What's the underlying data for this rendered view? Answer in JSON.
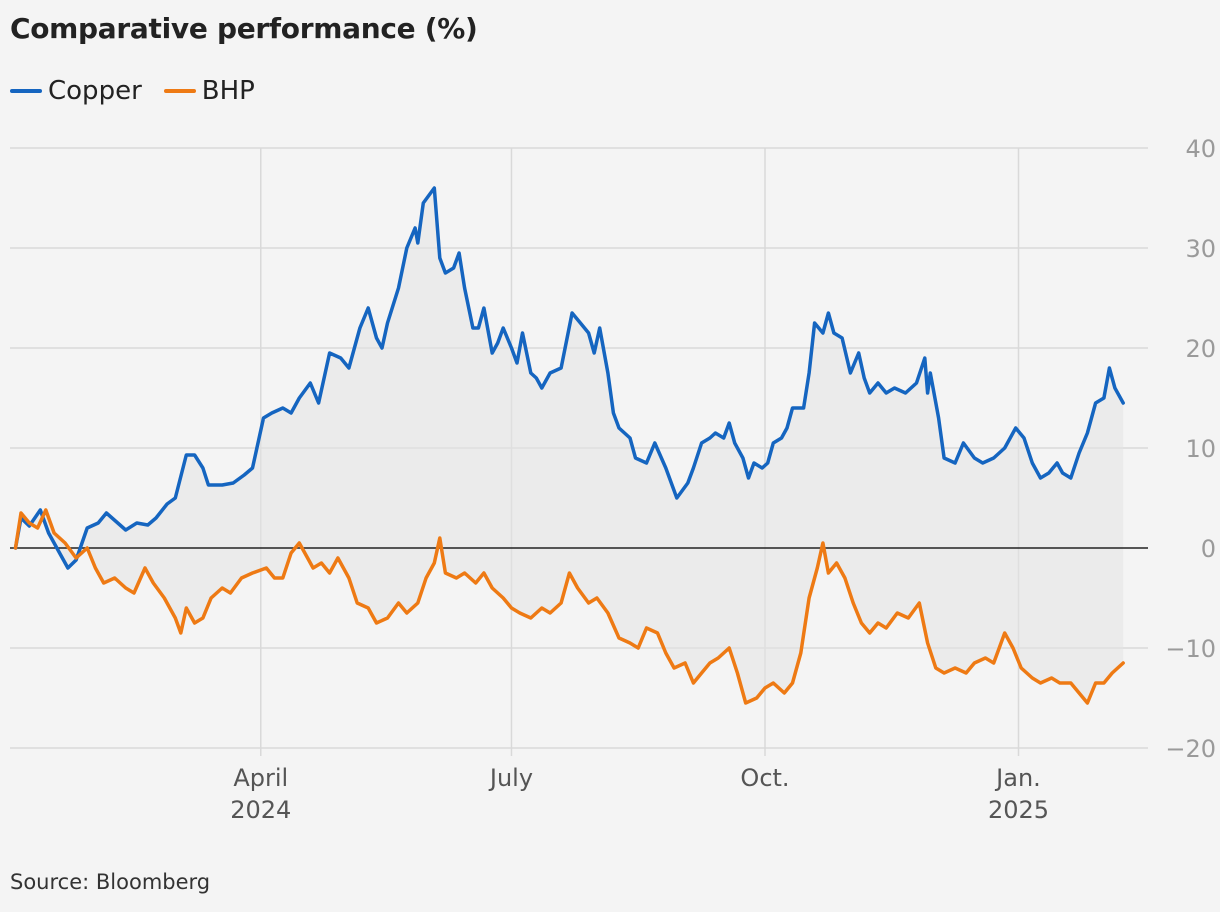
{
  "chart_data": {
    "type": "line",
    "title": "Comparative performance (%)",
    "xlabel": "",
    "ylabel": "",
    "ylim": [
      -20,
      40
    ],
    "xlim": [
      "2024-01-01",
      "2025-01-20"
    ],
    "y_ticks": [
      40,
      30,
      20,
      10,
      0,
      -10,
      -20
    ],
    "y_tick_labels": [
      "40",
      "30",
      "20",
      "10",
      "0",
      "−10",
      "−20"
    ],
    "x_ticks": [
      {
        "date": "2024-04-01",
        "label": "April",
        "sublabel": "2024"
      },
      {
        "date": "2024-07-01",
        "label": "July",
        "sublabel": ""
      },
      {
        "date": "2024-10-01",
        "label": "Oct.",
        "sublabel": ""
      },
      {
        "date": "2025-01-01",
        "label": "Jan.",
        "sublabel": "2025"
      }
    ],
    "grid": true,
    "legend_position": "top-left",
    "series": [
      {
        "name": "Copper",
        "color": "#1565c0",
        "points": [
          [
            "2024-01-03",
            0
          ],
          [
            "2024-01-05",
            3
          ],
          [
            "2024-01-08",
            2.2
          ],
          [
            "2024-01-12",
            3.8
          ],
          [
            "2024-01-15",
            1.5
          ],
          [
            "2024-01-19",
            -0.5
          ],
          [
            "2024-01-22",
            -2
          ],
          [
            "2024-01-25",
            -1.2
          ],
          [
            "2024-01-29",
            2
          ],
          [
            "2024-02-02",
            2.5
          ],
          [
            "2024-02-05",
            3.5
          ],
          [
            "2024-02-12",
            1.8
          ],
          [
            "2024-02-16",
            2.5
          ],
          [
            "2024-02-20",
            2.3
          ],
          [
            "2024-02-23",
            3
          ],
          [
            "2024-02-27",
            4.4
          ],
          [
            "2024-03-01",
            5
          ],
          [
            "2024-03-05",
            9.3
          ],
          [
            "2024-03-08",
            9.3
          ],
          [
            "2024-03-11",
            8
          ],
          [
            "2024-03-13",
            6.3
          ],
          [
            "2024-03-18",
            6.3
          ],
          [
            "2024-03-22",
            6.5
          ],
          [
            "2024-03-26",
            7.3
          ],
          [
            "2024-03-29",
            8
          ],
          [
            "2024-04-02",
            13
          ],
          [
            "2024-04-05",
            13.5
          ],
          [
            "2024-04-09",
            14
          ],
          [
            "2024-04-12",
            13.5
          ],
          [
            "2024-04-15",
            15
          ],
          [
            "2024-04-19",
            16.5
          ],
          [
            "2024-04-22",
            14.5
          ],
          [
            "2024-04-26",
            19.5
          ],
          [
            "2024-04-30",
            19
          ],
          [
            "2024-05-03",
            18
          ],
          [
            "2024-05-07",
            22
          ],
          [
            "2024-05-10",
            24
          ],
          [
            "2024-05-13",
            21
          ],
          [
            "2024-05-15",
            20
          ],
          [
            "2024-05-17",
            22.5
          ],
          [
            "2024-05-21",
            26
          ],
          [
            "2024-05-24",
            30
          ],
          [
            "2024-05-27",
            32
          ],
          [
            "2024-05-28",
            30.5
          ],
          [
            "2024-05-30",
            34.5
          ],
          [
            "2024-06-03",
            36
          ],
          [
            "2024-06-05",
            29
          ],
          [
            "2024-06-07",
            27.5
          ],
          [
            "2024-06-10",
            28
          ],
          [
            "2024-06-12",
            29.5
          ],
          [
            "2024-06-14",
            26
          ],
          [
            "2024-06-17",
            22
          ],
          [
            "2024-06-19",
            22
          ],
          [
            "2024-06-21",
            24
          ],
          [
            "2024-06-24",
            19.5
          ],
          [
            "2024-06-26",
            20.5
          ],
          [
            "2024-06-28",
            22
          ],
          [
            "2024-07-01",
            20
          ],
          [
            "2024-07-03",
            18.5
          ],
          [
            "2024-07-05",
            21.5
          ],
          [
            "2024-07-08",
            17.5
          ],
          [
            "2024-07-10",
            17
          ],
          [
            "2024-07-12",
            16
          ],
          [
            "2024-07-15",
            17.5
          ],
          [
            "2024-07-19",
            18
          ],
          [
            "2024-07-23",
            23.5
          ],
          [
            "2024-07-26",
            22.5
          ],
          [
            "2024-07-29",
            21.5
          ],
          [
            "2024-07-31",
            19.5
          ],
          [
            "2024-08-02",
            22
          ],
          [
            "2024-08-05",
            17.5
          ],
          [
            "2024-08-07",
            13.5
          ],
          [
            "2024-08-09",
            12
          ],
          [
            "2024-08-13",
            11
          ],
          [
            "2024-08-15",
            9
          ],
          [
            "2024-08-19",
            8.5
          ],
          [
            "2024-08-22",
            10.5
          ],
          [
            "2024-08-26",
            8
          ],
          [
            "2024-08-28",
            6.5
          ],
          [
            "2024-08-30",
            5
          ],
          [
            "2024-09-03",
            6.5
          ],
          [
            "2024-09-05",
            8
          ],
          [
            "2024-09-08",
            10.5
          ],
          [
            "2024-09-11",
            11
          ],
          [
            "2024-09-13",
            11.5
          ],
          [
            "2024-09-16",
            11
          ],
          [
            "2024-09-18",
            12.5
          ],
          [
            "2024-09-20",
            10.5
          ],
          [
            "2024-09-23",
            9
          ],
          [
            "2024-09-25",
            7
          ],
          [
            "2024-09-27",
            8.5
          ],
          [
            "2024-09-30",
            8
          ],
          [
            "2024-10-02",
            8.5
          ],
          [
            "2024-10-04",
            10.5
          ],
          [
            "2024-10-07",
            11
          ],
          [
            "2024-10-09",
            12
          ],
          [
            "2024-10-11",
            14
          ],
          [
            "2024-10-15",
            14
          ],
          [
            "2024-10-17",
            17.5
          ],
          [
            "2024-10-19",
            22.5
          ],
          [
            "2024-10-22",
            21.5
          ],
          [
            "2024-10-24",
            23.5
          ],
          [
            "2024-10-26",
            21.5
          ],
          [
            "2024-10-29",
            21
          ],
          [
            "2024-11-01",
            17.5
          ],
          [
            "2024-11-04",
            19.5
          ],
          [
            "2024-11-06",
            17
          ],
          [
            "2024-11-08",
            15.5
          ],
          [
            "2024-11-11",
            16.5
          ],
          [
            "2024-11-14",
            15.5
          ],
          [
            "2024-11-17",
            16
          ],
          [
            "2024-11-21",
            15.5
          ],
          [
            "2024-11-25",
            16.5
          ],
          [
            "2024-11-28",
            19
          ],
          [
            "2024-11-29",
            15.5
          ],
          [
            "2024-11-30",
            17.5
          ],
          [
            "2024-12-03",
            13
          ],
          [
            "2024-12-05",
            9
          ],
          [
            "2024-12-09",
            8.5
          ],
          [
            "2024-12-12",
            10.5
          ],
          [
            "2024-12-16",
            9
          ],
          [
            "2024-12-19",
            8.5
          ],
          [
            "2024-12-23",
            9
          ],
          [
            "2024-12-27",
            10
          ],
          [
            "2024-12-31",
            12
          ],
          [
            "2025-01-03",
            11
          ],
          [
            "2025-01-06",
            8.5
          ],
          [
            "2025-01-09",
            7
          ],
          [
            "2025-01-12",
            7.5
          ],
          [
            "2025-01-15",
            8.5
          ],
          [
            "2025-01-17",
            7.5
          ],
          [
            "2025-01-20",
            7
          ],
          [
            "2025-01-23",
            9.5
          ],
          [
            "2025-01-26",
            11.5
          ],
          [
            "2025-01-29",
            14.5
          ],
          [
            "2025-02-01",
            15
          ],
          [
            "2025-02-03",
            18
          ],
          [
            "2025-02-05",
            16
          ],
          [
            "2025-02-08",
            14.5
          ]
        ]
      },
      {
        "name": "BHP",
        "color": "#ee7a14",
        "points": [
          [
            "2024-01-03",
            0
          ],
          [
            "2024-01-05",
            3.5
          ],
          [
            "2024-01-08",
            2.5
          ],
          [
            "2024-01-11",
            2
          ],
          [
            "2024-01-14",
            3.8
          ],
          [
            "2024-01-17",
            1.5
          ],
          [
            "2024-01-21",
            0.5
          ],
          [
            "2024-01-25",
            -1
          ],
          [
            "2024-01-29",
            0
          ],
          [
            "2024-02-01",
            -2
          ],
          [
            "2024-02-04",
            -3.5
          ],
          [
            "2024-02-08",
            -3
          ],
          [
            "2024-02-12",
            -4
          ],
          [
            "2024-02-15",
            -4.5
          ],
          [
            "2024-02-19",
            -2
          ],
          [
            "2024-02-22",
            -3.5
          ],
          [
            "2024-02-26",
            -5
          ],
          [
            "2024-03-01",
            -7
          ],
          [
            "2024-03-03",
            -8.5
          ],
          [
            "2024-03-05",
            -6
          ],
          [
            "2024-03-08",
            -7.5
          ],
          [
            "2024-03-11",
            -7
          ],
          [
            "2024-03-14",
            -5
          ],
          [
            "2024-03-18",
            -4
          ],
          [
            "2024-03-21",
            -4.5
          ],
          [
            "2024-03-25",
            -3
          ],
          [
            "2024-03-29",
            -2.5
          ],
          [
            "2024-04-03",
            -2
          ],
          [
            "2024-04-06",
            -3
          ],
          [
            "2024-04-09",
            -3
          ],
          [
            "2024-04-12",
            -0.5
          ],
          [
            "2024-04-15",
            0.5
          ],
          [
            "2024-04-18",
            -1
          ],
          [
            "2024-04-20",
            -2
          ],
          [
            "2024-04-23",
            -1.5
          ],
          [
            "2024-04-26",
            -2.5
          ],
          [
            "2024-04-29",
            -1
          ],
          [
            "2024-05-03",
            -3
          ],
          [
            "2024-05-06",
            -5.5
          ],
          [
            "2024-05-10",
            -6
          ],
          [
            "2024-05-13",
            -7.5
          ],
          [
            "2024-05-17",
            -7
          ],
          [
            "2024-05-21",
            -5.5
          ],
          [
            "2024-05-24",
            -6.5
          ],
          [
            "2024-05-28",
            -5.5
          ],
          [
            "2024-05-31",
            -3
          ],
          [
            "2024-06-03",
            -1.5
          ],
          [
            "2024-06-05",
            1
          ],
          [
            "2024-06-07",
            -2.5
          ],
          [
            "2024-06-11",
            -3
          ],
          [
            "2024-06-14",
            -2.5
          ],
          [
            "2024-06-18",
            -3.5
          ],
          [
            "2024-06-21",
            -2.5
          ],
          [
            "2024-06-24",
            -4
          ],
          [
            "2024-06-28",
            -5
          ],
          [
            "2024-07-01",
            -6
          ],
          [
            "2024-07-04",
            -6.5
          ],
          [
            "2024-07-08",
            -7
          ],
          [
            "2024-07-12",
            -6
          ],
          [
            "2024-07-15",
            -6.5
          ],
          [
            "2024-07-19",
            -5.5
          ],
          [
            "2024-07-22",
            -2.5
          ],
          [
            "2024-07-25",
            -4
          ],
          [
            "2024-07-29",
            -5.5
          ],
          [
            "2024-08-01",
            -5
          ],
          [
            "2024-08-05",
            -6.5
          ],
          [
            "2024-08-09",
            -9
          ],
          [
            "2024-08-13",
            -9.5
          ],
          [
            "2024-08-16",
            -10
          ],
          [
            "2024-08-19",
            -8
          ],
          [
            "2024-08-23",
            -8.5
          ],
          [
            "2024-08-26",
            -10.5
          ],
          [
            "2024-08-29",
            -12
          ],
          [
            "2024-09-02",
            -11.5
          ],
          [
            "2024-09-05",
            -13.5
          ],
          [
            "2024-09-08",
            -12.5
          ],
          [
            "2024-09-11",
            -11.5
          ],
          [
            "2024-09-14",
            -11
          ],
          [
            "2024-09-18",
            -10
          ],
          [
            "2024-09-21",
            -12.5
          ],
          [
            "2024-09-24",
            -15.5
          ],
          [
            "2024-09-28",
            -15
          ],
          [
            "2024-10-01",
            -14
          ],
          [
            "2024-10-04",
            -13.5
          ],
          [
            "2024-10-08",
            -14.5
          ],
          [
            "2024-10-11",
            -13.5
          ],
          [
            "2024-10-14",
            -10.5
          ],
          [
            "2024-10-17",
            -5
          ],
          [
            "2024-10-20",
            -2
          ],
          [
            "2024-10-22",
            0.5
          ],
          [
            "2024-10-24",
            -2.5
          ],
          [
            "2024-10-27",
            -1.5
          ],
          [
            "2024-10-30",
            -3
          ],
          [
            "2024-11-02",
            -5.5
          ],
          [
            "2024-11-05",
            -7.5
          ],
          [
            "2024-11-08",
            -8.5
          ],
          [
            "2024-11-11",
            -7.5
          ],
          [
            "2024-11-14",
            -8
          ],
          [
            "2024-11-18",
            -6.5
          ],
          [
            "2024-11-22",
            -7
          ],
          [
            "2024-11-26",
            -5.5
          ],
          [
            "2024-11-29",
            -9.5
          ],
          [
            "2024-12-02",
            -12
          ],
          [
            "2024-12-05",
            -12.5
          ],
          [
            "2024-12-09",
            -12
          ],
          [
            "2024-12-13",
            -12.5
          ],
          [
            "2024-12-16",
            -11.5
          ],
          [
            "2024-12-20",
            -11
          ],
          [
            "2024-12-23",
            -11.5
          ],
          [
            "2024-12-27",
            -8.5
          ],
          [
            "2024-12-30",
            -10
          ],
          [
            "2025-01-02",
            -12
          ],
          [
            "2025-01-06",
            -13
          ],
          [
            "2025-01-09",
            -13.5
          ],
          [
            "2025-01-13",
            -13
          ],
          [
            "2025-01-16",
            -13.5
          ],
          [
            "2025-01-20",
            -13.5
          ],
          [
            "2025-01-23",
            -14.5
          ],
          [
            "2025-01-26",
            -15.5
          ],
          [
            "2025-01-29",
            -13.5
          ],
          [
            "2025-02-01",
            -13.5
          ],
          [
            "2025-02-04",
            -12.5
          ],
          [
            "2025-02-08",
            -11.5
          ]
        ]
      }
    ]
  },
  "source": "Source: Bloomberg"
}
